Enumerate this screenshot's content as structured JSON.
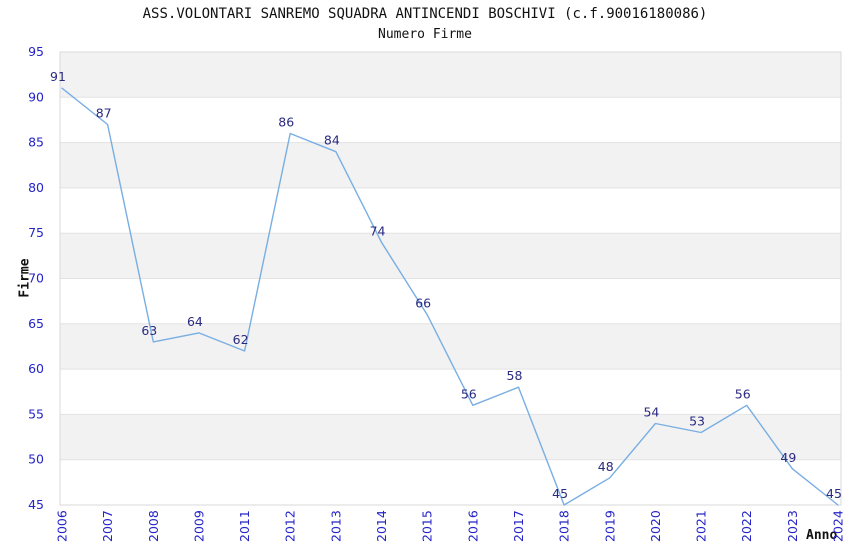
{
  "chart_data": {
    "type": "line",
    "title": "ASS.VOLONTARI SANREMO SQUADRA ANTINCENDI BOSCHIVI (c.f.90016180086)",
    "subtitle": "Numero Firme",
    "xlabel": "Anno",
    "ylabel": "Firme",
    "categories": [
      "2006",
      "2007",
      "2008",
      "2009",
      "2011",
      "2012",
      "2013",
      "2014",
      "2015",
      "2016",
      "2017",
      "2018",
      "2019",
      "2020",
      "2021",
      "2022",
      "2023",
      "2024"
    ],
    "values": [
      91,
      87,
      63,
      64,
      62,
      86,
      84,
      74,
      66,
      56,
      58,
      45,
      48,
      54,
      53,
      56,
      49,
      45
    ],
    "ylim": [
      45,
      95
    ],
    "ytick_step": 5,
    "yticks": [
      45,
      50,
      55,
      60,
      65,
      70,
      75,
      80,
      85,
      90,
      95
    ],
    "grid": "horizontal-alternating-bands",
    "legend": "none",
    "colors": {
      "line": "#79aee3",
      "data_label": "#2a2a80",
      "tick_label": "#2424c8",
      "band_gray": "#f2f2f2",
      "band_white": "#ffffff",
      "grid_line": "#e3e3e3",
      "plot_border": "#d9d9d9",
      "text": "#111111"
    }
  }
}
